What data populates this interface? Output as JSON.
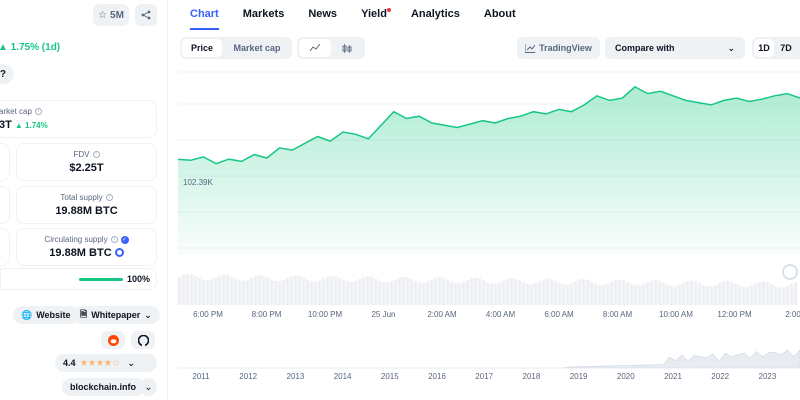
{
  "left": {
    "watch_count": "5M",
    "change": "▲ 1.75% (1d)",
    "question_pill": "y?",
    "market_cap": {
      "label": "arket cap",
      "value": "3T",
      "change": "▲ 1.74%"
    },
    "fdv": {
      "label": "FDV",
      "value": "$2.25T"
    },
    "total_supply": {
      "label": "Total supply",
      "value": "19.88M BTC"
    },
    "circulating_supply": {
      "label": "Circulating supply",
      "value": "19.88M BTC",
      "progress_percent": 100,
      "progress_label": "100%"
    },
    "links": {
      "website": "Website",
      "whitepaper": "Whitepaper",
      "explorer": "blockchain.info"
    },
    "rating": {
      "value": "4.4",
      "stars": 4.4
    }
  },
  "tabs": [
    {
      "label": "Chart",
      "active": true
    },
    {
      "label": "Markets"
    },
    {
      "label": "News"
    },
    {
      "label": "Yield",
      "dot": true
    },
    {
      "label": "Analytics"
    },
    {
      "label": "About"
    }
  ],
  "toolbar": {
    "price": "Price",
    "market_cap": "Market cap",
    "tradingview": "TradingView",
    "compare": "Compare with",
    "tf_1d": "1D",
    "tf_7d": "7D"
  },
  "chart": {
    "start_price_label": "102.39K",
    "x_ticks": [
      "6:00 PM",
      "8:00 PM",
      "10:00 PM",
      "25 Jun",
      "2:00 AM",
      "4:00 AM",
      "6:00 AM",
      "8:00 AM",
      "10:00 AM",
      "12:00 PM",
      "2:00"
    ],
    "year_ticks": [
      "2011",
      "2012",
      "2013",
      "2014",
      "2015",
      "2016",
      "2017",
      "2018",
      "2019",
      "2020",
      "2021",
      "2022",
      "2023"
    ],
    "colors": {
      "line": "#16c784",
      "fill": "#16c784",
      "grid": "#eff2f5"
    }
  },
  "chart_data": {
    "type": "area",
    "title": "",
    "xlabel": "",
    "ylabel": "",
    "labeled_price": "102.39K",
    "values": [
      102.39,
      102.35,
      102.5,
      102.2,
      102.4,
      102.3,
      102.6,
      102.45,
      102.9,
      102.8,
      103.1,
      103.4,
      103.2,
      103.6,
      103.5,
      103.3,
      103.9,
      104.5,
      104.2,
      104.3,
      104.0,
      103.9,
      103.8,
      103.95,
      104.1,
      104.0,
      104.2,
      104.3,
      104.5,
      104.4,
      104.6,
      104.5,
      104.8,
      105.2,
      105.0,
      105.1,
      105.6,
      105.3,
      105.4,
      105.2,
      105.0,
      104.9,
      104.8,
      105.0,
      105.1,
      104.95,
      105.05,
      105.2,
      105.3,
      105.1
    ],
    "grid": true
  }
}
